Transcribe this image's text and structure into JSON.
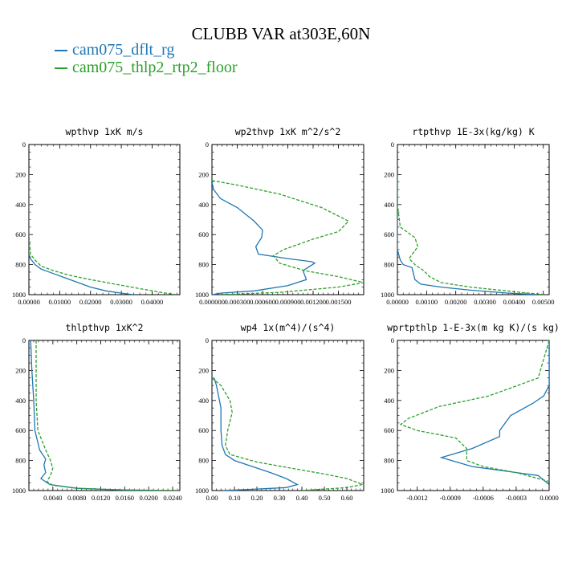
{
  "figure": {
    "title": "CLUBB VAR at303E,60N",
    "legend": [
      {
        "label": "cam075_dflt_rg",
        "color": "#1f77b4",
        "style": "solid"
      },
      {
        "label": "cam075_thlp2_rtp2_floor",
        "color": "#2ca02c",
        "style": "dashed"
      }
    ]
  },
  "chart_data": [
    {
      "type": "line",
      "title": "wpthvp  1xK m/s",
      "xlim": [
        0,
        0.049
      ],
      "xticks": [
        0,
        0.01,
        0.02,
        0.03,
        0.04
      ],
      "xtick_labels": [
        "0.00000",
        "0.01000",
        "0.02000",
        "0.03000",
        "0.04000"
      ],
      "ylim": [
        1000,
        0
      ],
      "yticks": [
        0,
        200,
        400,
        600,
        800,
        1000
      ],
      "series": [
        {
          "name": "cam075_dflt_rg",
          "x": [
            0,
            0,
            0,
            0,
            0.0005,
            0.002,
            0.004,
            0.008,
            0.012,
            0.016,
            0.02,
            0.025,
            0.03,
            0.034
          ],
          "y": [
            200,
            400,
            600,
            730,
            760,
            800,
            830,
            860,
            890,
            920,
            950,
            975,
            990,
            1000
          ]
        },
        {
          "name": "cam075_thlp2_rtp2_floor",
          "x": [
            0,
            0,
            0,
            0.0005,
            0.002,
            0.004,
            0.008,
            0.013,
            0.02,
            0.028,
            0.036,
            0.043,
            0.048
          ],
          "y": [
            200,
            400,
            600,
            730,
            770,
            810,
            840,
            870,
            900,
            930,
            960,
            985,
            1000
          ]
        }
      ]
    },
    {
      "type": "line",
      "title": "wp2thvp  1xK m^2/s^2",
      "xlim": [
        0,
        0.0018
      ],
      "xticks": [
        0,
        0.0003,
        0.0006,
        0.0009,
        0.0012,
        0.0015
      ],
      "xtick_labels": [
        "0.000000",
        "0.000300",
        "0.000600",
        "0.000900",
        "0.001200",
        "0.001500"
      ],
      "ylim": [
        1000,
        0
      ],
      "yticks": [
        0,
        200,
        400,
        600,
        800,
        1000
      ],
      "series": [
        {
          "name": "cam075_dflt_rg",
          "x": [
            0,
            2e-05,
            0.0001,
            0.0003,
            0.0005,
            0.0006,
            0.00059,
            0.00052,
            0.00055,
            0.0009,
            0.00118,
            0.00122,
            0.00108,
            0.00112,
            0.0009,
            0.0005,
            0.0001,
            0
          ],
          "y": [
            250,
            300,
            360,
            420,
            510,
            570,
            620,
            680,
            730,
            760,
            780,
            790,
            840,
            900,
            940,
            975,
            990,
            1000
          ]
        },
        {
          "name": "cam075_thlp2_rtp2_floor",
          "x": [
            0,
            0.0003,
            0.0008,
            0.0013,
            0.00162,
            0.0015,
            0.0012,
            0.00085,
            0.00073,
            0.0008,
            0.0011,
            0.0015,
            0.0018,
            0.0015,
            0.0008,
            0.0001
          ],
          "y": [
            240,
            270,
            330,
            420,
            510,
            580,
            630,
            700,
            740,
            790,
            840,
            880,
            920,
            950,
            985,
            1000
          ]
        }
      ]
    },
    {
      "type": "line",
      "title": "rtpthvp  1E-3x(kg/kg) K",
      "xlim": [
        0,
        0.0052
      ],
      "xticks": [
        0,
        0.001,
        0.002,
        0.003,
        0.004,
        0.005
      ],
      "xtick_labels": [
        "0.00000",
        "0.00100",
        "0.00200",
        "0.00300",
        "0.00400",
        "0.00500"
      ],
      "ylim": [
        1000,
        0
      ],
      "yticks": [
        0,
        200,
        400,
        600,
        800,
        1000
      ],
      "series": [
        {
          "name": "cam075_dflt_rg",
          "x": [
            0,
            0,
            0,
            0.0001,
            0.0002,
            0.0005,
            0.0006,
            0.0008,
            0.0015,
            0.0025,
            0.0038,
            0.0048
          ],
          "y": [
            200,
            400,
            700,
            770,
            800,
            820,
            900,
            930,
            950,
            970,
            990,
            1000
          ]
        },
        {
          "name": "cam075_thlp2_rtp2_floor",
          "x": [
            0,
            0,
            0.0001,
            0.0006,
            0.0007,
            0.0004,
            0.0006,
            0.0009,
            0.0011,
            0.0015,
            0.0025,
            0.0035,
            0.0045,
            0.0051
          ],
          "y": [
            200,
            400,
            550,
            620,
            680,
            760,
            800,
            840,
            880,
            920,
            950,
            970,
            990,
            1000
          ]
        }
      ]
    },
    {
      "type": "line",
      "title": "thlpthvp  1xK^2",
      "xlim": [
        0,
        0.0252
      ],
      "xticks": [
        0.004,
        0.008,
        0.012,
        0.016,
        0.02,
        0.024
      ],
      "xtick_labels": [
        "0.0040",
        "0.0080",
        "0.0120",
        "0.0160",
        "0.0200",
        "0.0240"
      ],
      "ylim": [
        1000,
        0
      ],
      "yticks": [
        0,
        200,
        400,
        600,
        800,
        1000
      ],
      "series": [
        {
          "name": "cam075_dflt_rg",
          "x": [
            0.0003,
            0.0005,
            0.0008,
            0.001,
            0.0018,
            0.0028,
            0.0025,
            0.0028,
            0.002,
            0.0035,
            0.008,
            0.015,
            0.022
          ],
          "y": [
            0,
            200,
            400,
            600,
            730,
            790,
            830,
            880,
            920,
            960,
            985,
            995,
            1000
          ]
        },
        {
          "name": "cam075_thlp2_rtp2_floor",
          "x": [
            0.0012,
            0.0012,
            0.0012,
            0.0015,
            0.0028,
            0.0035,
            0.004,
            0.0036,
            0.003,
            0.004,
            0.008,
            0.016,
            0.025
          ],
          "y": [
            0,
            200,
            400,
            600,
            730,
            790,
            850,
            900,
            940,
            965,
            985,
            995,
            1000
          ]
        }
      ]
    },
    {
      "type": "line",
      "title": "wp4  1x(m^4)/(s^4)",
      "xlim": [
        0,
        0.675
      ],
      "xticks": [
        0,
        0.1,
        0.2,
        0.3,
        0.4,
        0.5,
        0.6
      ],
      "xtick_labels": [
        "0.00",
        "0.10",
        "0.20",
        "0.30",
        "0.40",
        "0.50",
        "0.60"
      ],
      "ylim": [
        1000,
        0
      ],
      "yticks": [
        0,
        200,
        400,
        600,
        800,
        1000
      ],
      "series": [
        {
          "name": "cam075_dflt_rg",
          "x": [
            0.01,
            0.02,
            0.04,
            0.04,
            0.045,
            0.06,
            0.1,
            0.18,
            0.26,
            0.33,
            0.38,
            0.33,
            0.2,
            0.05
          ],
          "y": [
            250,
            300,
            450,
            600,
            700,
            760,
            800,
            840,
            880,
            920,
            960,
            980,
            990,
            1000
          ]
        },
        {
          "name": "cam075_thlp2_rtp2_floor",
          "x": [
            0,
            0.04,
            0.08,
            0.09,
            0.07,
            0.06,
            0.08,
            0.2,
            0.35,
            0.5,
            0.6,
            0.67,
            0.6,
            0.4
          ],
          "y": [
            250,
            300,
            400,
            480,
            600,
            700,
            760,
            810,
            850,
            890,
            920,
            960,
            980,
            1000
          ]
        }
      ]
    },
    {
      "type": "line",
      "title": "wprtpthlp  1-E-3x(m kg K)/(s kg)",
      "xlim": [
        -0.00138,
        0
      ],
      "xticks": [
        -0.0012,
        -0.0009,
        -0.0006,
        -0.0003,
        0
      ],
      "xtick_labels": [
        "-0.0012",
        "-0.0009",
        "-0.0006",
        "-0.0003",
        "0.0000"
      ],
      "ylim": [
        1000,
        0
      ],
      "yticks": [
        0,
        200,
        400,
        600,
        800,
        1000
      ],
      "series": [
        {
          "name": "cam075_dflt_rg",
          "x": [
            0,
            0,
            -5e-05,
            -0.00015,
            -0.00035,
            -0.00045,
            -0.00045,
            -0.0007,
            -0.00098,
            -0.0007,
            -0.0004,
            -0.0001,
            0
          ],
          "y": [
            0,
            300,
            370,
            420,
            500,
            600,
            640,
            720,
            780,
            840,
            870,
            900,
            960
          ]
        },
        {
          "name": "cam075_thlp2_rtp2_floor",
          "x": [
            0,
            -0.0001,
            -0.00055,
            -0.001,
            -0.00128,
            -0.00135,
            -0.0012,
            -0.00085,
            -0.00075,
            -0.00075,
            -0.0006,
            -0.0003,
            0
          ],
          "y": [
            0,
            250,
            370,
            440,
            520,
            560,
            600,
            650,
            720,
            800,
            840,
            880,
            940
          ]
        }
      ]
    }
  ]
}
